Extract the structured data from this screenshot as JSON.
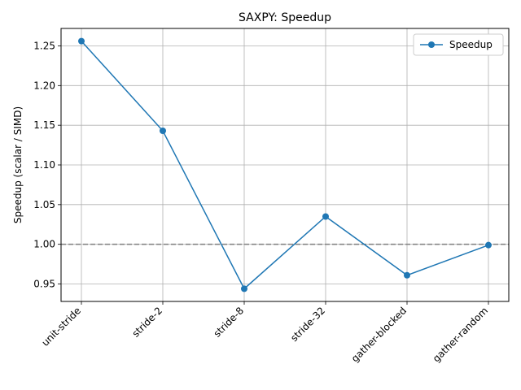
{
  "chart_data": {
    "type": "line",
    "title": "SAXPY: Speedup",
    "xlabel": "",
    "ylabel": "Speedup (scalar / SIMD)",
    "categories": [
      "unit-stride",
      "stride-2",
      "stride-8",
      "stride-32",
      "gather-blocked",
      "gather-random"
    ],
    "series": [
      {
        "name": "Speedup",
        "values": [
          1.256,
          1.143,
          0.944,
          1.035,
          0.961,
          0.999
        ],
        "color": "#1f77b4",
        "marker": "circle"
      }
    ],
    "ylim": [
      0.928,
      1.272
    ],
    "yticks": [
      0.95,
      1.0,
      1.05,
      1.1,
      1.15,
      1.2,
      1.25
    ],
    "reference_line": {
      "y": 1.0,
      "style": "dashed",
      "color": "#808080"
    },
    "grid": true,
    "legend": {
      "position": "top-right"
    }
  }
}
